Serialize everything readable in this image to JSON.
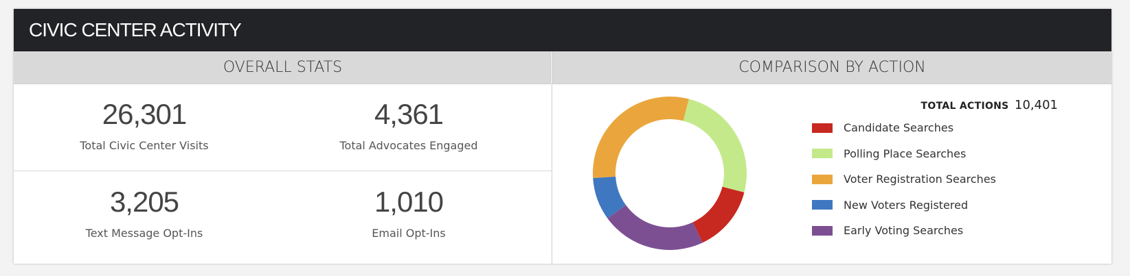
{
  "header": {
    "title": "CIVIC CENTER ACTIVITY"
  },
  "overall_stats": {
    "heading": "OVERALL STATS",
    "items": [
      {
        "value": "26,301",
        "label": "Total Civic Center Visits"
      },
      {
        "value": "4,361",
        "label": "Total Advocates Engaged"
      },
      {
        "value": "3,205",
        "label": "Text Message Opt-Ins"
      },
      {
        "value": "1,010",
        "label": "Email Opt-Ins"
      }
    ]
  },
  "comparison": {
    "heading": "COMPARISON BY ACTION",
    "total_label": "TOTAL ACTIONS",
    "total_value": "10,401",
    "legend": [
      {
        "label": "Candidate Searches",
        "color": "#c7281f"
      },
      {
        "label": "Polling Place Searches",
        "color": "#c4e98b"
      },
      {
        "label": "Voter Registration Searches",
        "color": "#eaa63d"
      },
      {
        "label": "New Voters Registered",
        "color": "#3f78c0"
      },
      {
        "label": "Early Voting Searches",
        "color": "#7c4f93"
      }
    ]
  },
  "chart_data": {
    "type": "pie",
    "title": "",
    "categories": [
      "Candidate Searches",
      "Polling Place Searches",
      "Voter Registration Searches",
      "New Voters Registered",
      "Early Voting Searches"
    ],
    "values": [
      14,
      25,
      30,
      9,
      22
    ],
    "units": "percent of total (estimated)",
    "total": 10401,
    "colors": [
      "#c7281f",
      "#c4e98b",
      "#eaa63d",
      "#3f78c0",
      "#7c4f93"
    ],
    "legend_position": "right"
  }
}
